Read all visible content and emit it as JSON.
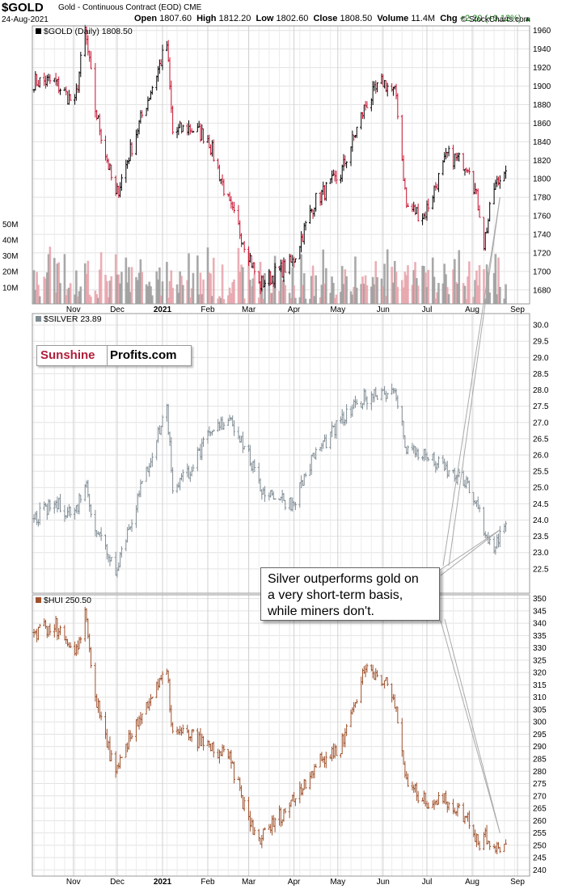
{
  "header": {
    "symbol": "$GOLD",
    "description": "Gold - Continuous Contract (EOD)",
    "exchange": "CME",
    "date": "24-Aug-2021",
    "open_label": "Open",
    "open": "1807.60",
    "high_label": "High",
    "high": "1812.20",
    "low_label": "Low",
    "low": "1802.60",
    "close_label": "Close",
    "close": "1808.50",
    "volume_label": "Volume",
    "volume": "11.4M",
    "chg_label": "Chg",
    "chg": "+2.20 (+0.12%)",
    "site": "© StockCharts.com"
  },
  "logo": {
    "part1": "Sunshine",
    "part2": "Profits.com",
    "brand_color": "#b01e3b"
  },
  "annotation": {
    "lines": [
      "Silver outperforms gold on",
      "a very short-term basis,",
      "while miners don't."
    ]
  },
  "colors": {
    "gold_up": "#000000",
    "gold_down": "#c8102e",
    "silver": "#7f8c94",
    "hui": "#a0522d",
    "vol_up": "#9a9a9a",
    "vol_down": "#e8a0a8"
  },
  "chart_data": [
    {
      "type": "line",
      "legend": "$GOLD (Daily) 1808.50",
      "y_range": [
        1665,
        1965
      ],
      "y_ticks": [
        1680,
        1700,
        1720,
        1740,
        1760,
        1780,
        1800,
        1820,
        1840,
        1860,
        1880,
        1900,
        1920,
        1940,
        1960
      ],
      "volume_ticks": [
        "10M",
        "20M",
        "30M",
        "40M",
        "50M"
      ],
      "x_ticks": [
        "Nov",
        "Dec",
        "2021",
        "Feb",
        "Mar",
        "Apr",
        "May",
        "Jun",
        "Jul",
        "Aug",
        "Sep"
      ],
      "x": [
        "2020-10-05",
        "2020-10-19",
        "2020-11-02",
        "2020-11-09",
        "2020-11-16",
        "2020-11-30",
        "2020-12-14",
        "2021-01-04",
        "2021-01-08",
        "2021-01-19",
        "2021-02-01",
        "2021-02-16",
        "2021-03-01",
        "2021-03-08",
        "2021-03-31",
        "2021-04-15",
        "2021-05-03",
        "2021-05-20",
        "2021-06-01",
        "2021-06-10",
        "2021-06-17",
        "2021-06-29",
        "2021-07-15",
        "2021-07-30",
        "2021-08-06",
        "2021-08-09",
        "2021-08-16",
        "2021-08-24"
      ],
      "close": [
        1905,
        1905,
        1880,
        1960,
        1875,
        1780,
        1850,
        1945,
        1850,
        1855,
        1845,
        1770,
        1720,
        1685,
        1710,
        1775,
        1805,
        1880,
        1905,
        1890,
        1770,
        1760,
        1825,
        1815,
        1765,
        1730,
        1790,
        1808.5
      ],
      "volume_range_m": [
        3,
        38
      ]
    },
    {
      "type": "line",
      "legend": "$SILVER 23.89",
      "y_range": [
        21.75,
        30.35
      ],
      "y_ticks": [
        22.5,
        23.0,
        23.5,
        24.0,
        24.5,
        25.0,
        25.5,
        26.0,
        26.5,
        27.0,
        27.5,
        28.0,
        28.5,
        29.0,
        29.5,
        30.0
      ],
      "x": [
        "2020-10-05",
        "2020-10-19",
        "2020-11-02",
        "2020-11-09",
        "2020-11-16",
        "2020-11-30",
        "2020-12-14",
        "2021-01-04",
        "2021-01-08",
        "2021-01-19",
        "2021-02-01",
        "2021-02-16",
        "2021-03-01",
        "2021-03-08",
        "2021-03-31",
        "2021-04-15",
        "2021-05-03",
        "2021-05-20",
        "2021-06-01",
        "2021-06-10",
        "2021-06-17",
        "2021-06-29",
        "2021-07-15",
        "2021-07-30",
        "2021-08-06",
        "2021-08-09",
        "2021-08-16",
        "2021-08-24"
      ],
      "close": [
        24.0,
        24.5,
        24.2,
        25.2,
        23.8,
        22.5,
        24.5,
        27.5,
        25.0,
        25.5,
        26.5,
        27.2,
        26.0,
        25.0,
        24.5,
        26.0,
        27.0,
        27.8,
        28.0,
        27.8,
        26.2,
        26.0,
        25.5,
        25.0,
        24.2,
        23.5,
        23.2,
        23.89
      ]
    },
    {
      "type": "line",
      "legend": "$HUI 250.50",
      "y_range": [
        237.5,
        351.5
      ],
      "y_ticks": [
        240,
        245,
        250,
        255,
        260,
        265,
        270,
        275,
        280,
        285,
        290,
        295,
        300,
        305,
        310,
        315,
        320,
        325,
        330,
        335,
        340,
        345,
        350
      ],
      "x": [
        "2020-10-05",
        "2020-10-19",
        "2020-11-02",
        "2020-11-09",
        "2020-11-16",
        "2020-11-30",
        "2020-12-14",
        "2021-01-04",
        "2021-01-08",
        "2021-01-19",
        "2021-02-01",
        "2021-02-16",
        "2021-03-01",
        "2021-03-08",
        "2021-03-31",
        "2021-04-15",
        "2021-05-03",
        "2021-05-20",
        "2021-06-01",
        "2021-06-10",
        "2021-06-17",
        "2021-06-29",
        "2021-07-15",
        "2021-07-30",
        "2021-08-06",
        "2021-08-09",
        "2021-08-16",
        "2021-08-24"
      ],
      "close": [
        335,
        340,
        325,
        345,
        310,
        278,
        300,
        320,
        295,
        295,
        290,
        285,
        260,
        252,
        268,
        282,
        290,
        322,
        318,
        305,
        275,
        268,
        268,
        260,
        250,
        255,
        250,
        250.5
      ]
    }
  ]
}
